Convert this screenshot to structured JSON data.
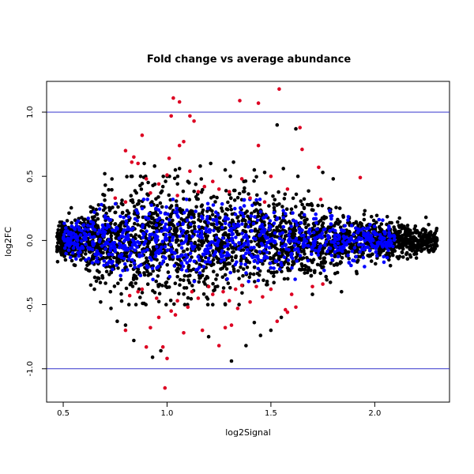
{
  "chart_data": {
    "type": "scatter",
    "title": "Fold change vs average abundance",
    "xlabel": "log2Signal",
    "ylabel": "log2FC",
    "xlim": [
      0.42,
      2.36
    ],
    "ylim": [
      -1.26,
      1.24
    ],
    "x_ticks": [
      0.5,
      1.0,
      1.5,
      2.0
    ],
    "y_ticks": [
      -1.0,
      -0.5,
      0.0,
      0.5,
      1.0
    ],
    "grid": false,
    "legend": "none",
    "reference_lines": [
      {
        "axis": "y",
        "value": 1.0,
        "color": "#3333cc"
      },
      {
        "axis": "y",
        "value": -1.0,
        "color": "#3333cc"
      }
    ],
    "series_colors": {
      "black": "#000000",
      "blue": "#0000ff",
      "red": "#dd0022"
    },
    "points": {
      "red": [
        [
          1.03,
          1.11
        ],
        [
          1.06,
          1.08
        ],
        [
          1.35,
          1.09
        ],
        [
          1.44,
          1.07
        ],
        [
          1.54,
          1.18
        ],
        [
          1.11,
          0.97
        ],
        [
          1.02,
          0.97
        ],
        [
          0.88,
          0.82
        ],
        [
          1.64,
          0.88
        ],
        [
          1.13,
          0.93
        ],
        [
          1.44,
          0.74
        ],
        [
          1.65,
          0.71
        ],
        [
          1.08,
          0.77
        ],
        [
          1.06,
          0.74
        ],
        [
          0.84,
          0.65
        ],
        [
          0.83,
          0.61
        ],
        [
          0.86,
          0.6
        ],
        [
          0.8,
          0.7
        ],
        [
          1.01,
          0.64
        ],
        [
          1.73,
          0.57
        ],
        [
          1.93,
          0.49
        ],
        [
          1.5,
          0.5
        ],
        [
          1.36,
          0.48
        ],
        [
          1.0,
          0.51
        ],
        [
          1.11,
          0.54
        ],
        [
          0.9,
          0.48
        ],
        [
          0.96,
          0.44
        ],
        [
          1.18,
          0.42
        ],
        [
          1.22,
          0.46
        ],
        [
          1.58,
          0.4
        ],
        [
          1.74,
          0.32
        ],
        [
          1.3,
          0.38
        ],
        [
          0.92,
          0.37
        ],
        [
          1.05,
          0.35
        ],
        [
          1.4,
          0.33
        ],
        [
          0.75,
          0.33
        ],
        [
          0.8,
          0.3
        ],
        [
          1.15,
          0.38
        ],
        [
          1.25,
          0.4
        ],
        [
          1.47,
          0.3
        ],
        [
          1.15,
          -0.45
        ],
        [
          1.22,
          -0.42
        ],
        [
          1.27,
          -0.4
        ],
        [
          1.3,
          -0.47
        ],
        [
          1.1,
          -0.52
        ],
        [
          1.02,
          -0.55
        ],
        [
          0.96,
          -0.6
        ],
        [
          1.04,
          -0.58
        ],
        [
          1.34,
          -0.53
        ],
        [
          1.57,
          -0.54
        ],
        [
          1.62,
          -0.52
        ],
        [
          1.58,
          -0.56
        ],
        [
          1.28,
          -0.68
        ],
        [
          1.31,
          -0.66
        ],
        [
          1.17,
          -0.7
        ],
        [
          1.53,
          -0.63
        ],
        [
          0.92,
          -0.68
        ],
        [
          0.8,
          -0.7
        ],
        [
          1.08,
          -0.72
        ],
        [
          1.25,
          -0.82
        ],
        [
          1.0,
          -0.92
        ],
        [
          0.9,
          -0.83
        ],
        [
          0.98,
          -0.83
        ],
        [
          0.99,
          -1.15
        ],
        [
          1.4,
          -0.48
        ],
        [
          1.46,
          -0.44
        ],
        [
          0.86,
          -0.4
        ],
        [
          0.88,
          -0.38
        ],
        [
          1.2,
          -0.36
        ],
        [
          1.36,
          -0.35
        ],
        [
          1.75,
          -0.34
        ],
        [
          1.7,
          -0.36
        ],
        [
          1.5,
          -0.38
        ],
        [
          0.95,
          -0.45
        ],
        [
          1.12,
          -0.4
        ],
        [
          1.6,
          -0.42
        ],
        [
          0.82,
          -0.43
        ],
        [
          1.05,
          -0.47
        ],
        [
          1.33,
          -0.38
        ],
        [
          1.43,
          -0.36
        ]
      ],
      "black": [
        [
          1.53,
          0.9
        ],
        [
          1.62,
          0.87
        ],
        [
          1.32,
          0.61
        ],
        [
          1.21,
          0.6
        ],
        [
          1.28,
          0.55
        ],
        [
          1.16,
          0.58
        ],
        [
          1.06,
          0.56
        ],
        [
          1.04,
          0.55
        ],
        [
          0.89,
          0.6
        ],
        [
          0.94,
          0.58
        ],
        [
          0.7,
          0.52
        ],
        [
          1.42,
          0.55
        ],
        [
          1.47,
          0.53
        ],
        [
          1.56,
          0.56
        ],
        [
          1.75,
          0.53
        ],
        [
          1.63,
          0.5
        ],
        [
          1.8,
          0.48
        ],
        [
          1.37,
          0.46
        ],
        [
          1.1,
          0.46
        ],
        [
          0.98,
          0.42
        ],
        [
          1.45,
          -0.74
        ],
        [
          1.5,
          -0.7
        ],
        [
          1.38,
          -0.82
        ],
        [
          1.31,
          -0.94
        ],
        [
          0.93,
          -0.91
        ],
        [
          0.97,
          -0.86
        ],
        [
          0.76,
          -0.63
        ],
        [
          0.73,
          -0.53
        ],
        [
          0.65,
          -0.38
        ],
        [
          0.68,
          -0.48
        ],
        [
          1.42,
          -0.64
        ],
        [
          1.55,
          -0.6
        ],
        [
          0.84,
          -0.78
        ],
        [
          1.2,
          -0.75
        ],
        [
          0.8,
          -0.66
        ],
        [
          1.7,
          -0.42
        ],
        [
          1.84,
          -0.4
        ],
        [
          2.2,
          0.06
        ],
        [
          2.25,
          0.02
        ],
        [
          2.3,
          0.0
        ],
        [
          2.27,
          -0.04
        ],
        [
          2.18,
          -0.08
        ],
        [
          2.13,
          0.12
        ],
        [
          0.48,
          0.0
        ],
        [
          0.47,
          0.03
        ],
        [
          0.49,
          -0.03
        ],
        [
          0.52,
          0.06
        ],
        [
          0.52,
          -0.07
        ]
      ],
      "blue": [],
      "generated": [
        {
          "color": "black",
          "count": 2600,
          "seed": 7,
          "xmin": 0.47,
          "xmax": 2.3,
          "spread": [
            [
              0.5,
              0.06
            ],
            [
              0.7,
              0.17
            ],
            [
              0.9,
              0.22
            ],
            [
              1.1,
              0.22
            ],
            [
              1.3,
              0.2
            ],
            [
              1.5,
              0.17
            ],
            [
              1.7,
              0.13
            ],
            [
              1.9,
              0.09
            ],
            [
              2.1,
              0.07
            ],
            [
              2.3,
              0.04
            ]
          ]
        },
        {
          "color": "blue",
          "count": 900,
          "seed": 13,
          "xmin": 0.5,
          "xmax": 2.1,
          "spread": [
            [
              0.5,
              0.05
            ],
            [
              0.7,
              0.12
            ],
            [
              0.9,
              0.15
            ],
            [
              1.1,
              0.16
            ],
            [
              1.3,
              0.15
            ],
            [
              1.5,
              0.13
            ],
            [
              1.7,
              0.1
            ],
            [
              1.9,
              0.08
            ],
            [
              2.1,
              0.05
            ]
          ]
        }
      ]
    }
  }
}
